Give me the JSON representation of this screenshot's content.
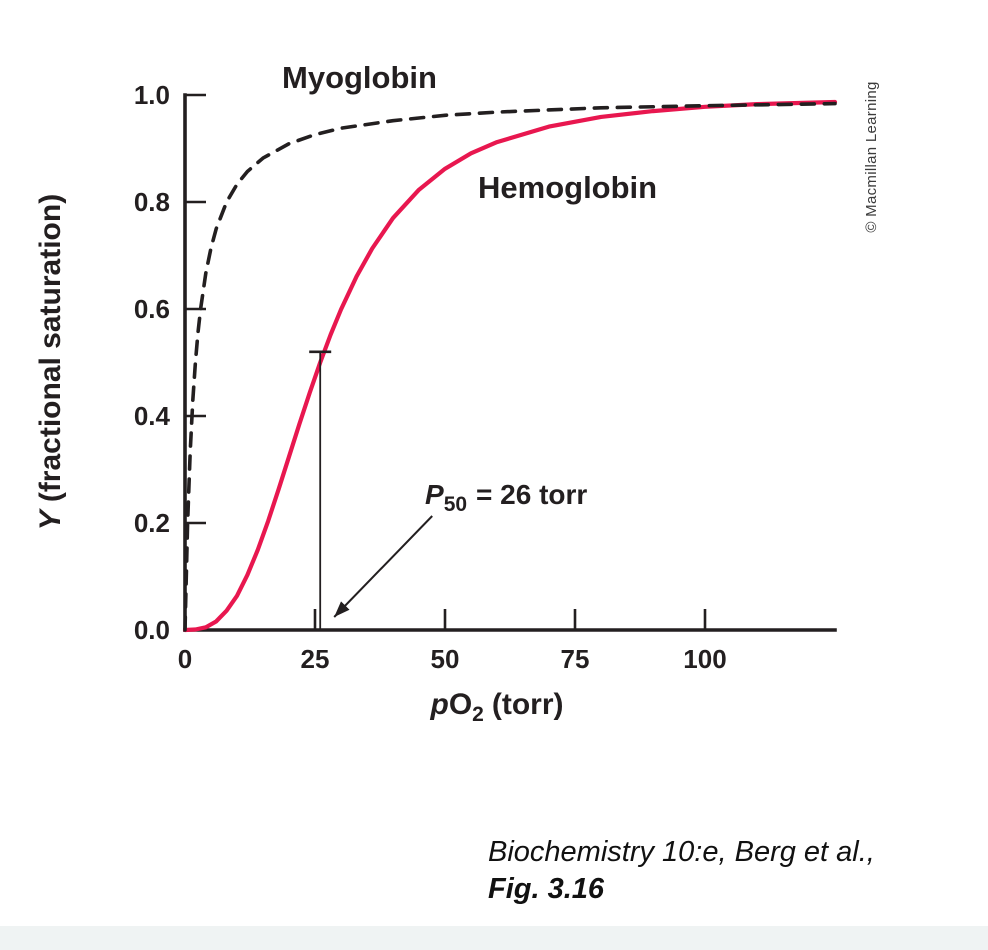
{
  "chart_data": {
    "type": "line",
    "title": "",
    "xlabel_parts": {
      "italic": "p",
      "main": "O",
      "sub": "2",
      "rest": "(torr)"
    },
    "ylabel_parts": {
      "italic": "Y",
      "rest": "(fractional saturation)"
    },
    "xlim": [
      0,
      125
    ],
    "ylim": [
      0,
      1.0
    ],
    "grid": false,
    "x_ticks": [
      0,
      25,
      50,
      75,
      100
    ],
    "x_tick_labels": [
      "0",
      "25",
      "50",
      "75",
      "100"
    ],
    "y_ticks": [
      0,
      0.2,
      0.4,
      0.6,
      0.8,
      1.0
    ],
    "y_tick_labels": [
      "0.0",
      "0.2",
      "0.4",
      "0.6",
      "0.8",
      "1.0"
    ],
    "annotation": {
      "italic": "P",
      "sub": "50",
      "rest": "= 26 torr",
      "x": 26,
      "y": 0.5,
      "cap_y": 0.52
    },
    "series": [
      {
        "name": "Myoglobin",
        "color": "#231f20",
        "style": "dashed",
        "x": [
          0,
          0.5,
          1,
          1.5,
          2,
          2.5,
          3,
          4,
          5,
          6,
          8,
          10,
          12,
          15,
          20,
          25,
          30,
          40,
          50,
          60,
          80,
          100,
          125
        ],
        "y": [
          0,
          0.2,
          0.333,
          0.429,
          0.5,
          0.556,
          0.6,
          0.667,
          0.714,
          0.75,
          0.8,
          0.833,
          0.857,
          0.882,
          0.909,
          0.926,
          0.938,
          0.952,
          0.962,
          0.968,
          0.976,
          0.98,
          0.984
        ]
      },
      {
        "name": "Hemoglobin",
        "color": "#e8174f",
        "style": "solid",
        "x": [
          0,
          2,
          4,
          6,
          8,
          10,
          12,
          14,
          16,
          18,
          20,
          22,
          24,
          26,
          28,
          30,
          33,
          36,
          40,
          45,
          50,
          55,
          60,
          70,
          80,
          90,
          100,
          110,
          125
        ],
        "y": [
          0,
          0.001,
          0.005,
          0.016,
          0.036,
          0.064,
          0.103,
          0.15,
          0.204,
          0.263,
          0.324,
          0.385,
          0.444,
          0.5,
          0.552,
          0.599,
          0.661,
          0.713,
          0.77,
          0.823,
          0.862,
          0.891,
          0.912,
          0.941,
          0.959,
          0.97,
          0.978,
          0.983,
          0.987
        ]
      }
    ]
  },
  "credit": "© Macmillan Learning",
  "caption": {
    "line1": "Biochemistry 10:e, Berg et al.,",
    "line2": "Fig. 3.16"
  }
}
